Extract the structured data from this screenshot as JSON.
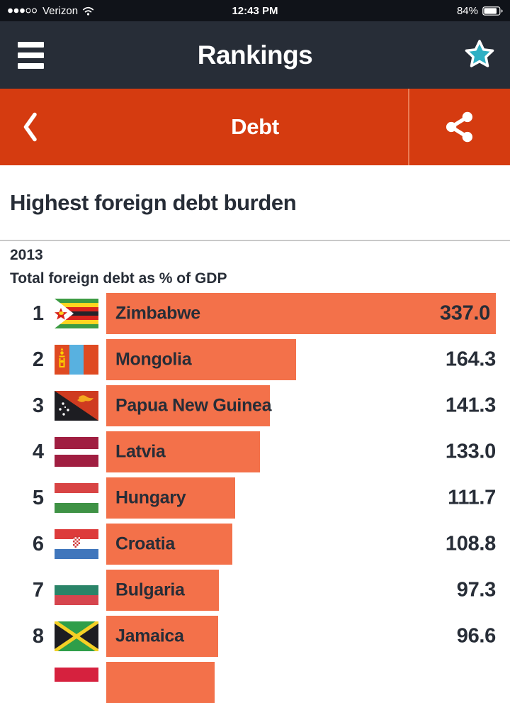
{
  "status_bar": {
    "signal": "3 of 5 dots",
    "carrier": "Verizon",
    "time": "12:43 PM",
    "battery_percent": "84%"
  },
  "header": {
    "title": "Rankings",
    "left_icon": "menu-icon",
    "right_icon": "star-icon"
  },
  "nav": {
    "title": "Debt",
    "left_icon": "back-icon",
    "right_icon": "share-icon"
  },
  "page": {
    "title": "Highest foreign debt burden",
    "year": "2013",
    "measure": "Total foreign debt as % of GDP"
  },
  "chart_data": {
    "type": "bar",
    "orientation": "horizontal",
    "title": "Highest foreign debt burden",
    "year": "2013",
    "value_label": "Total foreign debt as % of GDP",
    "max_value": 337.0,
    "rows": [
      {
        "rank": "1",
        "country": "Zimbabwe",
        "value": "337.0",
        "flag": "zimbabwe"
      },
      {
        "rank": "2",
        "country": "Mongolia",
        "value": "164.3",
        "flag": "mongolia"
      },
      {
        "rank": "3",
        "country": "Papua New Guinea",
        "value": "141.3",
        "flag": "papua-new-guinea"
      },
      {
        "rank": "4",
        "country": "Latvia",
        "value": "133.0",
        "flag": "latvia"
      },
      {
        "rank": "5",
        "country": "Hungary",
        "value": "111.7",
        "flag": "hungary"
      },
      {
        "rank": "6",
        "country": "Croatia",
        "value": "108.8",
        "flag": "croatia"
      },
      {
        "rank": "7",
        "country": "Bulgaria",
        "value": "97.3",
        "flag": "bulgaria"
      },
      {
        "rank": "8",
        "country": "Jamaica",
        "value": "96.6",
        "flag": "jamaica"
      },
      {
        "rank": "",
        "country": "",
        "value": "",
        "flag": "next-partial",
        "bar_frac": 0.279
      }
    ]
  },
  "colors": {
    "accent_red": "#d53b10",
    "bar_orange": "#f3714a",
    "header_dark": "#272d37",
    "status_dark": "#101319",
    "star_teal": "#2fb0c4",
    "text_dark": "#272d37",
    "rule_gray": "#c9c9c9"
  }
}
